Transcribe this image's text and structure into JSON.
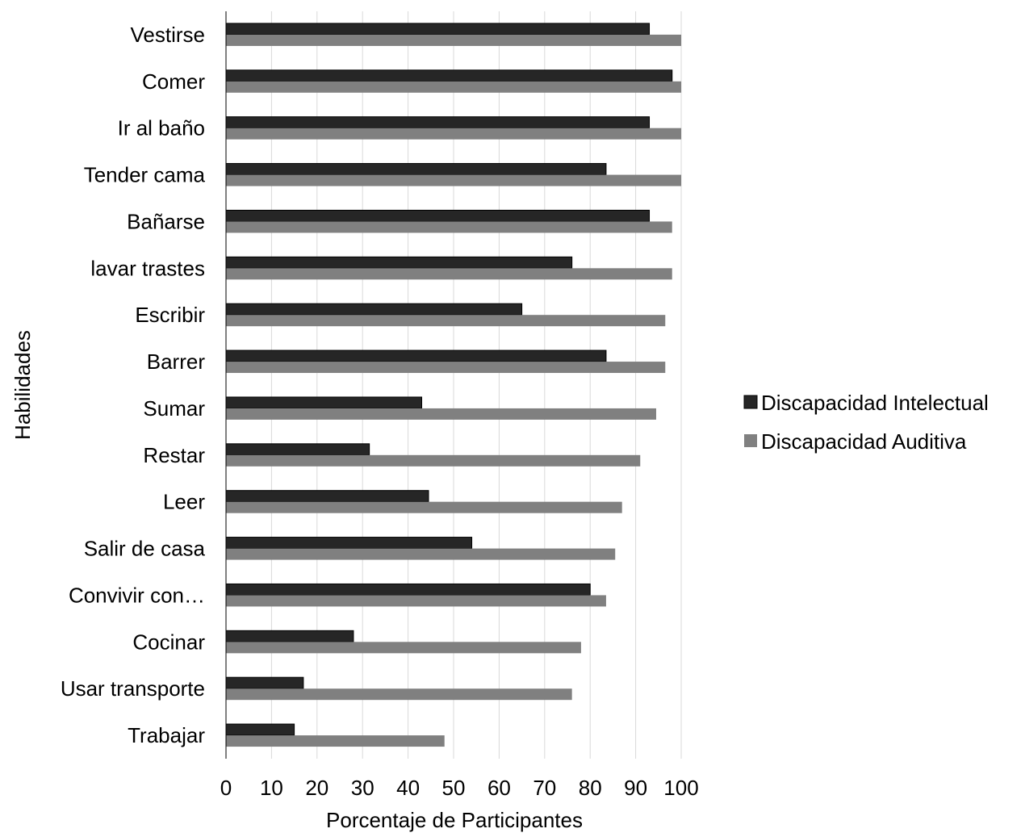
{
  "chart_data": {
    "type": "bar",
    "orientation": "horizontal",
    "title": "",
    "xlabel": "Porcentaje de Participantes",
    "ylabel": "Habilidades",
    "xlim": [
      0,
      100
    ],
    "xticks": [
      0,
      10,
      20,
      30,
      40,
      50,
      60,
      70,
      80,
      90,
      100
    ],
    "xtick_labels": [
      "0",
      "10",
      "20",
      "30",
      "40",
      "50",
      "60",
      "70",
      "80",
      "90",
      "100"
    ],
    "grid": true,
    "legend_position": "right",
    "categories": [
      "Vestirse",
      "Comer",
      "Ir al baño",
      "Tender cama",
      "Bañarse",
      "lavar trastes",
      "Escribir",
      "Barrer",
      "Sumar",
      "Restar",
      "Leer",
      "Salir de casa",
      "Convivir con…",
      "Cocinar",
      "Usar transporte",
      "Trabajar"
    ],
    "series": [
      {
        "name": "Discapacidad Intelectual",
        "color": "#262626",
        "values": [
          93,
          98,
          93,
          83.5,
          93,
          76,
          65,
          83.5,
          43,
          31.5,
          44.5,
          54,
          80,
          28,
          17,
          15
        ]
      },
      {
        "name": "Discapacidad Auditiva",
        "color": "#808080",
        "values": [
          100,
          100,
          100,
          100,
          98,
          98,
          96.5,
          96.5,
          94.5,
          91,
          87,
          85.5,
          83.5,
          78,
          76,
          48
        ]
      }
    ]
  }
}
